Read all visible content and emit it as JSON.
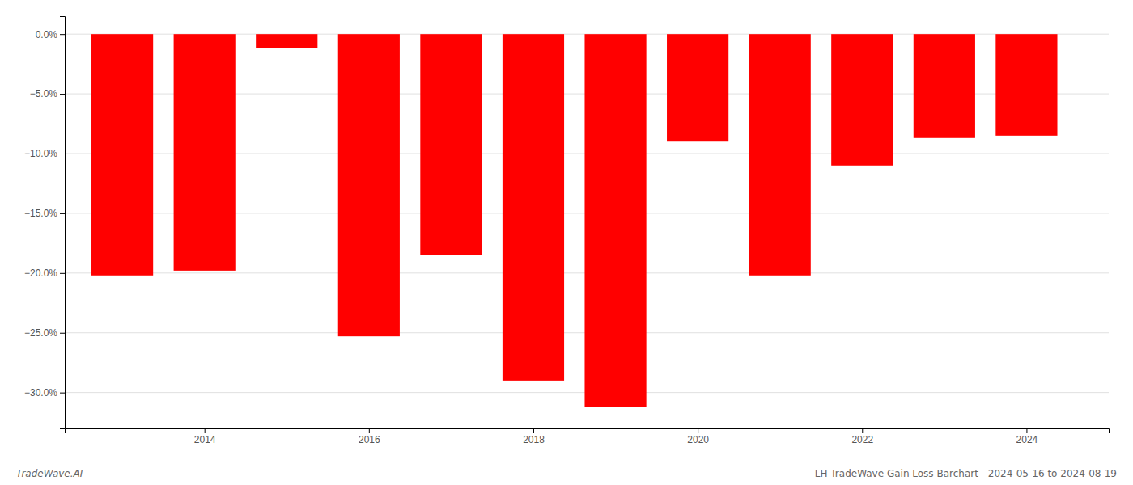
{
  "chart_data": {
    "type": "bar",
    "x": [
      2013,
      2014,
      2015,
      2016,
      2017,
      2018,
      2019,
      2020,
      2021,
      2022,
      2023,
      2024
    ],
    "values": [
      -20.2,
      -19.8,
      -1.2,
      -25.3,
      -18.5,
      -29.0,
      -31.2,
      -9.0,
      -20.2,
      -11.0,
      -8.7,
      -8.5
    ],
    "color": "#ff0000",
    "xlim": [
      2012.3,
      2025.0
    ],
    "xticks": [
      2014,
      2016,
      2018,
      2020,
      2022,
      2024
    ],
    "ylim": [
      -33,
      1.5
    ],
    "yticks": [
      {
        "value": 0.0,
        "label": "0.0%"
      },
      {
        "value": -5.0,
        "label": "−5.0%"
      },
      {
        "value": -10.0,
        "label": "−10.0%"
      },
      {
        "value": -15.0,
        "label": "−15.0%"
      },
      {
        "value": -20.0,
        "label": "−20.0%"
      },
      {
        "value": -25.0,
        "label": "−25.0%"
      },
      {
        "value": -30.0,
        "label": "−30.0%"
      }
    ],
    "grid": true,
    "annotations": [
      "TradeWave.AI",
      "LH TradeWave Gain Loss Barchart - 2024-05-16 to 2024-08-19"
    ]
  }
}
